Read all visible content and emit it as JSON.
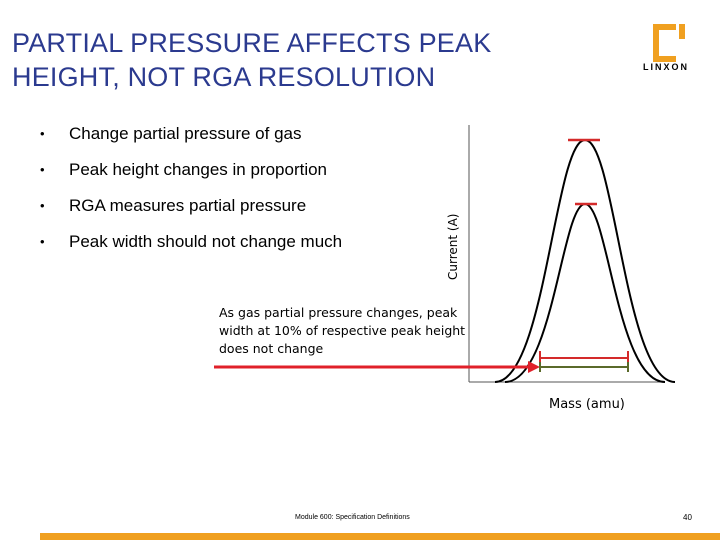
{
  "title": "PARTIAL PRESSURE AFFECTS PEAK HEIGHT, NOT RGA RESOLUTION",
  "logo_text": "LINXON",
  "bullets": [
    "Change partial pressure of gas",
    "Peak height changes in proportion",
    "RGA measures partial pressure",
    "Peak width should not change much"
  ],
  "bullet_glyph": "•",
  "chart": {
    "ylabel": "Current (A)",
    "xlabel": "Mass (amu)",
    "annotation": "As gas partial pressure changes, peak width at 10% of respective peak height does not change",
    "colors": {
      "peak_markers": "#d42a2a",
      "arrow": "#e0202a",
      "width_bar_large": "#d42a2a",
      "width_bar_small": "#5a6a2a"
    }
  },
  "footer": "Module 600: Specification Definitions",
  "page_number": "40",
  "accent_color": "#f0a020"
}
